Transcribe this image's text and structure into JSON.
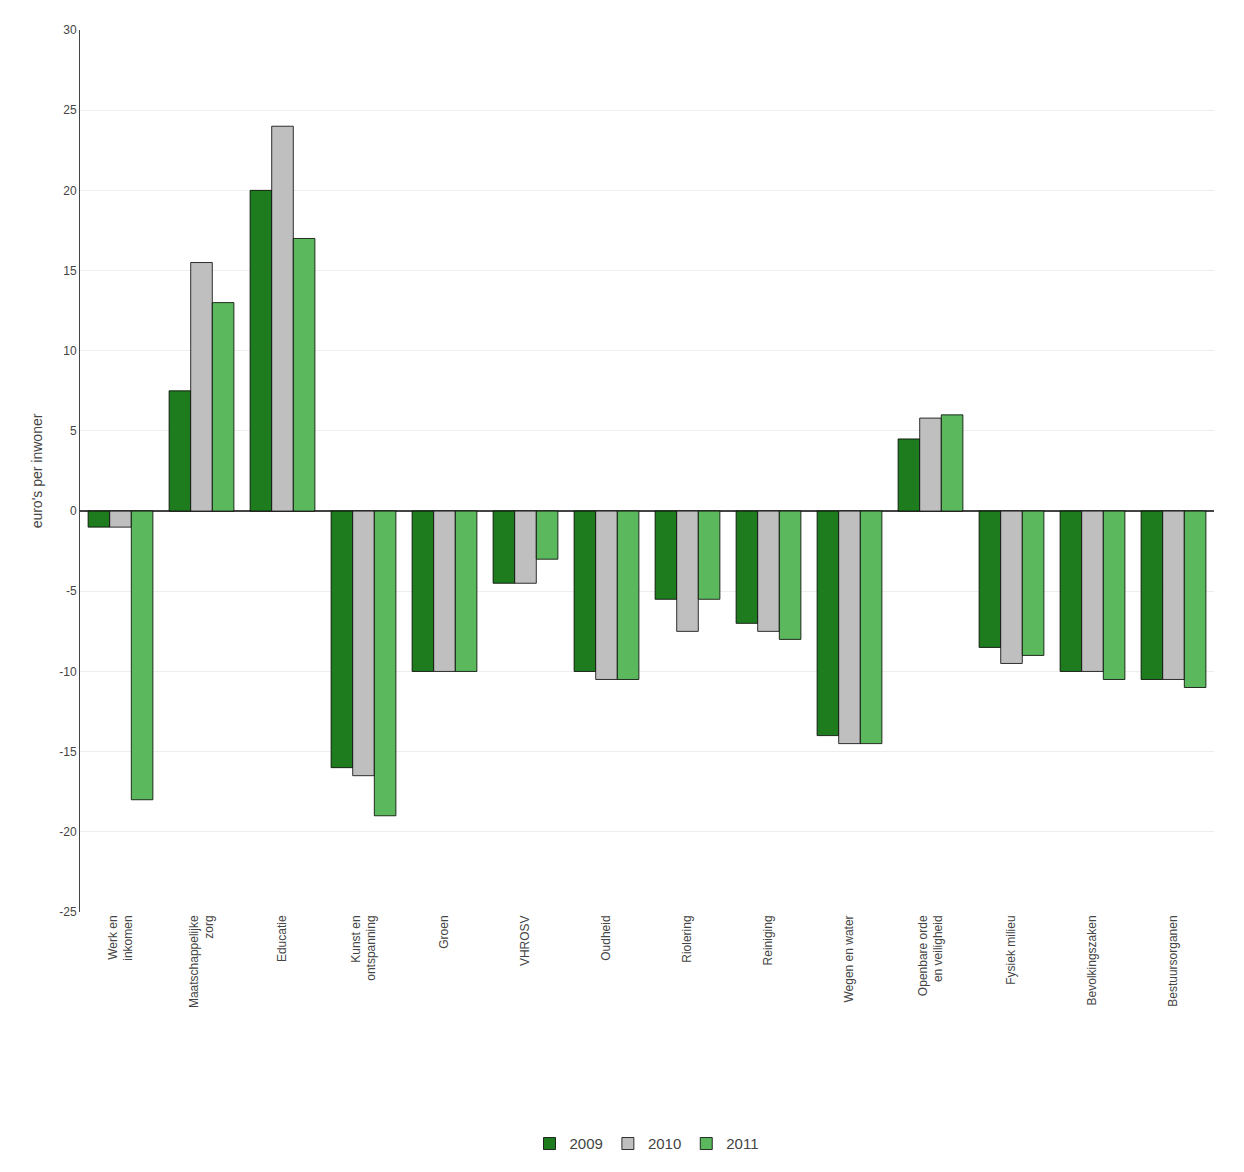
{
  "chart_data": {
    "type": "bar",
    "categories": [
      "Werk en\ninkomen",
      "Maatschappelijke\nzorg",
      "Educatie",
      "Kunst en\nontspanning",
      "Groen",
      "VHROSV",
      "Oudheid",
      "Riolering",
      "Reiniging",
      "Wegen en water",
      "Openbare orde\nen veiligheid",
      "Fysiek milieu",
      "Bevolkingszaken",
      "Bestuursorganen"
    ],
    "series": [
      {
        "name": "2009",
        "color": "#1e7b1e",
        "values": [
          -1.0,
          7.5,
          20.0,
          -16.0,
          -10.0,
          -4.5,
          -10.0,
          -5.5,
          -7.0,
          -14.0,
          4.5,
          -8.5,
          -10.0,
          -10.5
        ]
      },
      {
        "name": "2010",
        "color": "#bfbfbf",
        "values": [
          -1.0,
          15.5,
          24.0,
          -16.5,
          -10.0,
          -4.5,
          -10.5,
          -7.5,
          -7.5,
          -14.5,
          5.8,
          -9.5,
          -10.0,
          -10.5
        ]
      },
      {
        "name": "2011",
        "color": "#5cb85c",
        "values": [
          -18.0,
          13.0,
          17.0,
          -19.0,
          -10.0,
          -3.0,
          -10.5,
          -5.5,
          -8.0,
          -14.5,
          6.0,
          -9.0,
          -10.5,
          -11.0
        ]
      }
    ],
    "ylabel": "euro's per inwoner",
    "ylim": [
      -25,
      30
    ],
    "yticks": [
      -25,
      -20,
      -15,
      -10,
      -5,
      0,
      5,
      10,
      15,
      20,
      25,
      30
    ],
    "grid": true,
    "legend": "bottom"
  }
}
